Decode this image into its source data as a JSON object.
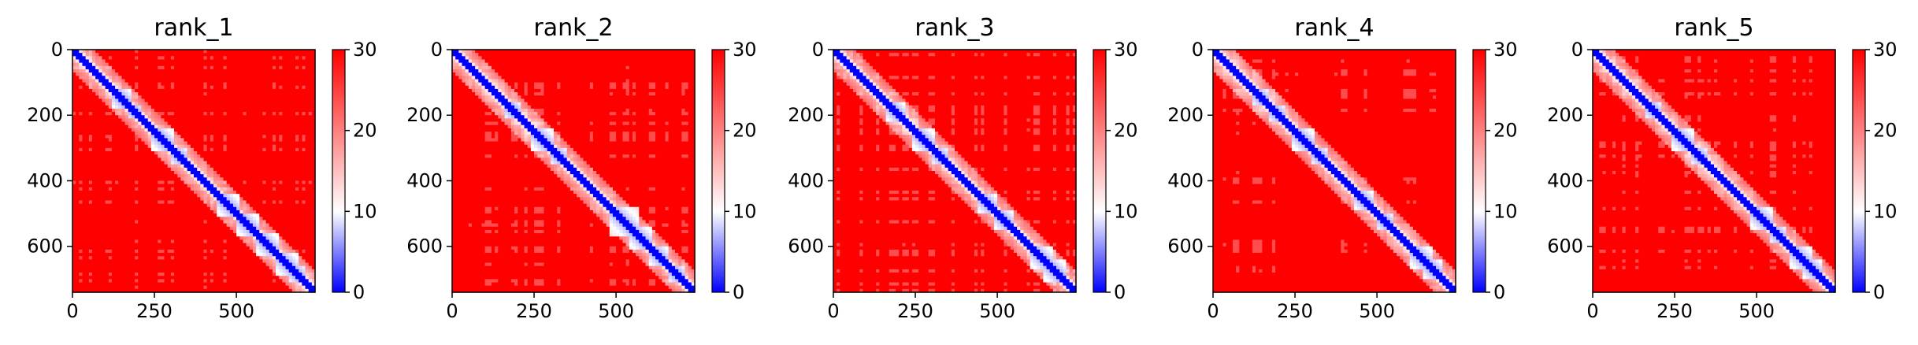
{
  "figure": {
    "colors": {
      "low": "#0000ff",
      "mid": "#ffffff",
      "high": "#ff0000"
    },
    "chart_data": [
      {
        "type": "heatmap",
        "title": "rank_1",
        "size": 740,
        "xticks": [
          0,
          250,
          500
        ],
        "xtick_labels": [
          "0",
          "250",
          "500"
        ],
        "yticks": [
          0,
          200,
          400,
          600
        ],
        "ytick_labels": [
          "0",
          "200",
          "400",
          "600"
        ],
        "xlim": [
          0,
          740
        ],
        "ylim": [
          740,
          0
        ],
        "colorbar": {
          "range": [
            0,
            30
          ],
          "ticks": [
            0,
            10,
            20,
            30
          ],
          "tick_labels": [
            "0",
            "10",
            "20",
            "30"
          ]
        },
        "domains": [
          [
            120,
            170
          ],
          [
            165,
            200
          ],
          [
            240,
            300
          ],
          [
            300,
            340
          ],
          [
            440,
            500
          ],
          [
            500,
            560
          ],
          [
            560,
            620
          ],
          [
            620,
            680
          ],
          [
            660,
            700
          ]
        ]
      },
      {
        "type": "heatmap",
        "title": "rank_2",
        "size": 740,
        "xticks": [
          0,
          250,
          500
        ],
        "xtick_labels": [
          "0",
          "250",
          "500"
        ],
        "yticks": [
          0,
          200,
          400,
          600
        ],
        "ytick_labels": [
          "0",
          "200",
          "400",
          "600"
        ],
        "xlim": [
          0,
          740
        ],
        "ylim": [
          740,
          0
        ],
        "colorbar": {
          "range": [
            0,
            30
          ],
          "ticks": [
            0,
            10,
            20,
            30
          ],
          "tick_labels": [
            "0",
            "10",
            "20",
            "30"
          ]
        },
        "domains": [
          [
            160,
            200
          ],
          [
            240,
            300
          ],
          [
            300,
            340
          ],
          [
            480,
            560
          ],
          [
            540,
            600
          ],
          [
            600,
            650
          ],
          [
            660,
            700
          ]
        ]
      },
      {
        "type": "heatmap",
        "title": "rank_3",
        "size": 740,
        "xticks": [
          0,
          250,
          500
        ],
        "xtick_labels": [
          "0",
          "250",
          "500"
        ],
        "yticks": [
          0,
          200,
          400,
          600
        ],
        "ytick_labels": [
          "0",
          "200",
          "400",
          "600"
        ],
        "xlim": [
          0,
          740
        ],
        "ylim": [
          740,
          0
        ],
        "colorbar": {
          "range": [
            0,
            30
          ],
          "ticks": [
            0,
            10,
            20,
            30
          ],
          "tick_labels": [
            "0",
            "10",
            "20",
            "30"
          ]
        },
        "domains": [
          [
            160,
            210
          ],
          [
            240,
            300
          ],
          [
            300,
            340
          ],
          [
            440,
            490
          ],
          [
            490,
            540
          ],
          [
            600,
            660
          ],
          [
            640,
            700
          ]
        ]
      },
      {
        "type": "heatmap",
        "title": "rank_4",
        "size": 740,
        "xticks": [
          0,
          250,
          500
        ],
        "xtick_labels": [
          "0",
          "250",
          "500"
        ],
        "yticks": [
          0,
          200,
          400,
          600
        ],
        "ytick_labels": [
          "0",
          "200",
          "400",
          "600"
        ],
        "xlim": [
          0,
          740
        ],
        "ylim": [
          740,
          0
        ],
        "colorbar": {
          "range": [
            0,
            30
          ],
          "ticks": [
            0,
            10,
            20,
            30
          ],
          "tick_labels": [
            "0",
            "10",
            "20",
            "30"
          ]
        },
        "domains": [
          [
            120,
            160
          ],
          [
            170,
            210
          ],
          [
            240,
            300
          ],
          [
            300,
            340
          ],
          [
            430,
            480
          ],
          [
            500,
            540
          ],
          [
            600,
            660
          ],
          [
            640,
            690
          ]
        ]
      },
      {
        "type": "heatmap",
        "title": "rank_5",
        "size": 740,
        "xticks": [
          0,
          250,
          500
        ],
        "xtick_labels": [
          "0",
          "250",
          "500"
        ],
        "yticks": [
          0,
          200,
          400,
          600
        ],
        "ytick_labels": [
          "0",
          "200",
          "400",
          "600"
        ],
        "xlim": [
          0,
          740
        ],
        "ylim": [
          740,
          0
        ],
        "colorbar": {
          "range": [
            0,
            30
          ],
          "ticks": [
            0,
            10,
            20,
            30
          ],
          "tick_labels": [
            "0",
            "10",
            "20",
            "30"
          ]
        },
        "domains": [
          [
            160,
            200
          ],
          [
            240,
            300
          ],
          [
            300,
            340
          ],
          [
            480,
            540
          ],
          [
            540,
            580
          ],
          [
            600,
            660
          ],
          [
            640,
            690
          ]
        ]
      }
    ]
  }
}
